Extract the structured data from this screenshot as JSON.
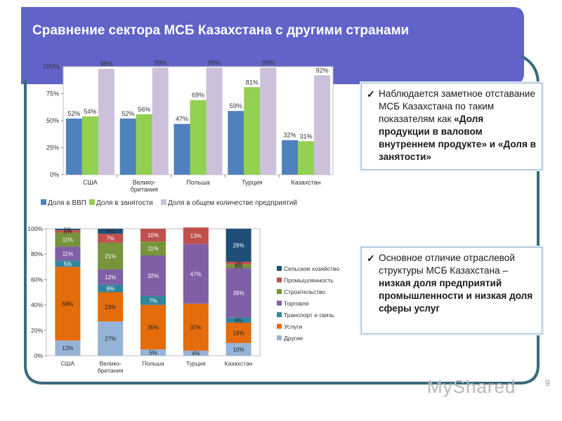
{
  "slide": {
    "title": "Сравнение сектора МСБ Казахстана с другими странами",
    "page_number": "9",
    "watermark": "MyShared",
    "colors": {
      "banner": "#6163c8",
      "frame": "#3a6b7a"
    }
  },
  "notes": [
    {
      "icon": "check-icon",
      "check": "✓",
      "plain": "Наблюдается заметное отставание МСБ Казахстана по таким показателям как ",
      "bold": "«Доля продукции в валовом внутреннем продукте» и «Доля в занятости»"
    },
    {
      "icon": "check-icon",
      "check": "✓",
      "plain": "Основное отличие отраслевой структуры МСБ Казахстана – ",
      "bold": "низкая доля предприятий промышленности и низкая доля сферы услуг"
    }
  ],
  "chart_data": [
    {
      "type": "bar",
      "categories": [
        "США",
        "Велико-британия",
        "Польша",
        "Турция",
        "Казахстан"
      ],
      "category_lines": [
        [
          "США"
        ],
        [
          "Велико-",
          "британия"
        ],
        [
          "Польша"
        ],
        [
          "Турция"
        ],
        [
          "Казахстан"
        ]
      ],
      "series": [
        {
          "name": "Доля в ВВП",
          "color": "#4f81bd",
          "values": [
            52,
            52,
            47,
            59,
            32
          ]
        },
        {
          "name": "Доля в занятости",
          "color": "#92d050",
          "values": [
            54,
            56,
            69,
            81,
            31
          ]
        },
        {
          "name": "Доля в общем количестве предприятий",
          "color": "#ccc0da",
          "values": [
            98,
            99,
            99,
            99,
            92
          ]
        }
      ],
      "ylim": [
        0,
        100
      ],
      "yticks": [
        "0%",
        "25%",
        "50%",
        "75%",
        "100%"
      ],
      "data_label_suffix": "%",
      "grid": false,
      "legend": "bottom"
    },
    {
      "type": "bar",
      "stacked": true,
      "categories": [
        "США",
        "Велико-британия",
        "Польша",
        "Турция",
        "Казахстан"
      ],
      "category_lines": [
        [
          "США"
        ],
        [
          "Велико-",
          "британия"
        ],
        [
          "Польша"
        ],
        [
          "Турция"
        ],
        [
          "Казахстан"
        ]
      ],
      "series": [
        {
          "name": "Другие",
          "color": "#95b3d7",
          "values": [
            12,
            27,
            5,
            4,
            10
          ],
          "labels": [
            "12%",
            "27%",
            "5%",
            "4%",
            "10%"
          ]
        },
        {
          "name": "Услуги",
          "color": "#e46c0a",
          "values": [
            58,
            23,
            35,
            37,
            16
          ],
          "labels": [
            "58%",
            "23%",
            "35%",
            "37%",
            "16%"
          ]
        },
        {
          "name": "Транспорт и связь",
          "color": "#31859c",
          "values": [
            5,
            6,
            7,
            0,
            4
          ],
          "labels": [
            "5%",
            "6%",
            "7%",
            "",
            "4%"
          ]
        },
        {
          "name": "Торговля",
          "color": "#7f5fa5",
          "values": [
            11,
            12,
            32,
            47,
            39
          ],
          "labels": [
            "11%",
            "12%",
            "32%",
            "47%",
            "39%"
          ]
        },
        {
          "name": "Строительство",
          "color": "#77933c",
          "values": [
            11,
            21,
            11,
            0,
            3
          ],
          "labels": [
            "11%",
            "21%",
            "11%",
            "",
            "3%"
          ]
        },
        {
          "name": "Промышленность",
          "color": "#c0504d",
          "values": [
            2,
            7,
            10,
            13,
            2
          ],
          "labels": [
            "2%",
            "7%",
            "10%",
            "13%",
            "2%"
          ]
        },
        {
          "name": "Сельское хозяйство",
          "color": "#1f4e79",
          "values": [
            1,
            4,
            0,
            0,
            26
          ],
          "labels": [
            "1%",
            "4%",
            "",
            "",
            "26%"
          ]
        }
      ],
      "ylim": [
        0,
        100
      ],
      "yticks": [
        "0%",
        "20%",
        "40%",
        "60%",
        "80%",
        "100%"
      ],
      "grid": false,
      "legend": "right"
    }
  ]
}
